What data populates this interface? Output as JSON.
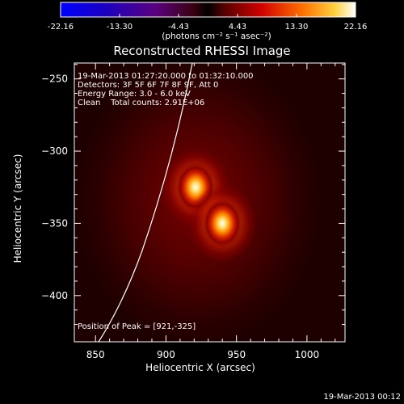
{
  "colorbar": {
    "ticks": [
      "-22.16",
      "-13.30",
      "-4.43",
      "4.43",
      "13.30",
      "22.16"
    ],
    "unit_label": "(photons cm⁻² s⁻¹ asec⁻²)"
  },
  "title": "Reconstructed RHESSI Image",
  "info": {
    "time_range": "19-Mar-2013 01:27:20.000 to 01:32:10.000",
    "detectors": "Detectors: 3F 5F 6F 7F 8F 9F, Att 0",
    "energy": "Energy Range: 3.0 - 6.0 keV",
    "method": "Clean    Total counts: 2.91E+06",
    "peak": "Position of Peak = [921,-325]"
  },
  "xaxis": {
    "label": "Heliocentric X (arcsec)",
    "range": [
      835,
      1027
    ],
    "ticks": [
      {
        "value": 850,
        "label": "850"
      },
      {
        "value": 900,
        "label": "900"
      },
      {
        "value": 950,
        "label": "950"
      },
      {
        "value": 1000,
        "label": "1000"
      }
    ]
  },
  "yaxis": {
    "label": "Heliocentric Y (arcsec)",
    "range": [
      -432,
      -239
    ],
    "ticks": [
      {
        "value": -250,
        "label": "−250"
      },
      {
        "value": -300,
        "label": "−300"
      },
      {
        "value": -350,
        "label": "−350"
      },
      {
        "value": -400,
        "label": "−400"
      }
    ]
  },
  "sources": [
    {
      "x": 921,
      "y": -325
    },
    {
      "x": 940,
      "y": -350
    }
  ],
  "footer_timestamp": "19-Mar-2013 00:12"
}
